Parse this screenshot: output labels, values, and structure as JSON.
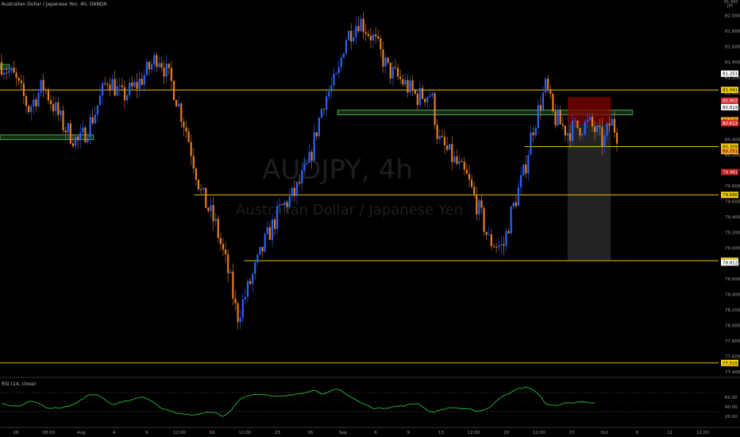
{
  "header": {
    "title": "Australian Dollar / Japanese Yen, 4h, OANDA"
  },
  "watermark": {
    "symbol": "AUDJPY, 4h",
    "name": "Australian Dollar / Japanese Yen"
  },
  "axis_top": {
    "line1": "81.990",
    "line2": "JPY"
  },
  "rsi": {
    "label": "RSI (14, close)",
    "ticks": [
      "60.00",
      "40.00",
      "20.00"
    ]
  },
  "colors": {
    "background": "#000000",
    "bull": "#2962ff",
    "bear": "#e67e22",
    "level": "#e6c200",
    "zone": "#4caf50",
    "rsi": "#2ecc40",
    "stop": "#8b0000"
  },
  "chart_data": {
    "type": "candlestick",
    "ylim": [
      77.4,
      82.1
    ],
    "yticks": [
      "82.000",
      "81.800",
      "81.600",
      "81.400",
      "81.200",
      "81.000",
      "80.800",
      "80.600",
      "80.400",
      "80.200",
      "80.000",
      "79.800",
      "79.600",
      "79.400",
      "79.200",
      "79.000",
      "78.800",
      "78.600",
      "78.400",
      "78.200",
      "78.000",
      "77.800",
      "77.600",
      "77.400"
    ],
    "xticks": [
      "26",
      "08:00",
      "Aug",
      "4",
      "9",
      "12:00",
      "16",
      "12:00",
      "23",
      "26",
      "Sep",
      "6",
      "9",
      "13",
      "12:00",
      "20",
      "12:00",
      "27",
      "Oct",
      "6",
      "11",
      "12:00"
    ],
    "path": [
      [
        0,
        81.4
      ],
      [
        0.02,
        81.2
      ],
      [
        0.04,
        80.8
      ],
      [
        0.06,
        81.1
      ],
      [
        0.09,
        80.55
      ],
      [
        0.11,
        80.35
      ],
      [
        0.13,
        80.7
      ],
      [
        0.15,
        81.2
      ],
      [
        0.17,
        80.95
      ],
      [
        0.19,
        81.1
      ],
      [
        0.21,
        81.35
      ],
      [
        0.22,
        81.5
      ],
      [
        0.24,
        81.1
      ],
      [
        0.26,
        80.5
      ],
      [
        0.28,
        79.7
      ],
      [
        0.3,
        79.3
      ],
      [
        0.32,
        78.6
      ],
      [
        0.33,
        78.1
      ],
      [
        0.35,
        78.6
      ],
      [
        0.37,
        79.1
      ],
      [
        0.39,
        79.5
      ],
      [
        0.41,
        79.7
      ],
      [
        0.43,
        80.1
      ],
      [
        0.45,
        80.9
      ],
      [
        0.47,
        81.2
      ],
      [
        0.48,
        81.7
      ],
      [
        0.5,
        81.95
      ],
      [
        0.52,
        81.7
      ],
      [
        0.54,
        81.3
      ],
      [
        0.56,
        81.15
      ],
      [
        0.58,
        80.95
      ],
      [
        0.6,
        81.0
      ],
      [
        0.61,
        80.4
      ],
      [
        0.63,
        80.15
      ],
      [
        0.65,
        79.9
      ],
      [
        0.67,
        79.4
      ],
      [
        0.68,
        79.1
      ],
      [
        0.7,
        79.0
      ],
      [
        0.71,
        79.4
      ],
      [
        0.73,
        80.0
      ],
      [
        0.74,
        80.5
      ],
      [
        0.76,
        81.1
      ],
      [
        0.77,
        80.7
      ],
      [
        0.79,
        80.5
      ],
      [
        0.8,
        80.55
      ],
      [
        0.82,
        80.6
      ],
      [
        0.83,
        80.5
      ],
      [
        0.84,
        80.35
      ],
      [
        0.85,
        80.65
      ],
      [
        0.86,
        80.45
      ]
    ],
    "levels": [
      {
        "price": 81.041,
        "label": "81.041",
        "from": 0.0
      },
      {
        "price": 80.309,
        "label": "80.309",
        "from": 0.73
      },
      {
        "price": 79.686,
        "label": "79.686",
        "from": 0.27
      },
      {
        "price": 78.835,
        "label": "78.835",
        "from": 0.34
      },
      {
        "price": 77.515,
        "label": "77.515",
        "from": 0.0
      }
    ],
    "zones": [
      {
        "top": 80.78,
        "bottom": 80.72,
        "from": 0.47,
        "to": 0.88
      },
      {
        "top": 80.46,
        "bottom": 80.4,
        "from": 0.0,
        "to": 0.13
      },
      {
        "top": 81.37,
        "bottom": 81.31,
        "from": 0.0,
        "to": 0.013
      }
    ],
    "position": {
      "entry": 80.6,
      "stop": 80.95,
      "target": 78.835,
      "from": 0.79,
      "to": 0.85
    },
    "price_tags": [
      {
        "price": 81.251,
        "label": "81.251",
        "bg": "#ffffff",
        "fg": "#000000"
      },
      {
        "price": 80.902,
        "label": "80.902",
        "bg": "#d32f2f",
        "fg": "#ffffff"
      },
      {
        "price": 80.819,
        "label": "80.819",
        "bg": "#ffffff",
        "fg": "#000000"
      },
      {
        "price": 80.649,
        "label": "80.649",
        "bg": "#f5a623",
        "fg": "#000000"
      },
      {
        "price": 80.612,
        "label": "80.612",
        "bg": "#d32f2f",
        "fg": "#ffffff"
      },
      {
        "price": 80.251,
        "label": "80.251",
        "bg": "#f5a623",
        "fg": "#000000"
      },
      {
        "price": 79.981,
        "label": "79.981",
        "bg": "#b71c1c",
        "fg": "#ffffff"
      },
      {
        "price": 78.812,
        "label": "78.812",
        "bg": "#ffffff",
        "fg": "#000000"
      }
    ]
  }
}
